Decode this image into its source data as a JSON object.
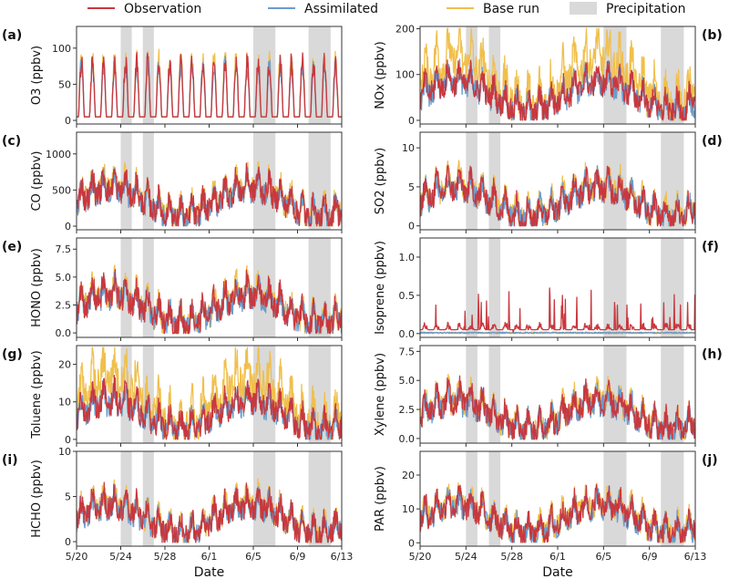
{
  "legend": [
    {
      "key": "obs",
      "label": "Observation",
      "color": "#c8383e"
    },
    {
      "key": "assim",
      "label": "Assimilated",
      "color": "#6b9ccc"
    },
    {
      "key": "base",
      "label": "Base run",
      "color": "#f0bf4c"
    },
    {
      "key": "precip",
      "label": "Precipitation",
      "color": "#d9d9d9"
    }
  ],
  "xlabel": "Date",
  "chart_data": [
    {
      "type": "line",
      "label": "(a)",
      "ylabel": "O3 (ppbv)",
      "ylabel_sub": "3",
      "ylim": [
        -5,
        130
      ],
      "yticks": [
        0,
        50,
        100
      ]
    },
    {
      "type": "line",
      "label": "(b)",
      "ylabel": "NOx (ppbv)",
      "ylim": [
        -8,
        205
      ],
      "yticks": [
        0,
        100,
        200
      ]
    },
    {
      "type": "line",
      "label": "(c)",
      "ylabel": "CO (ppbv)",
      "ylim": [
        -50,
        1300
      ],
      "yticks": [
        0,
        500,
        1000
      ]
    },
    {
      "type": "line",
      "label": "(d)",
      "ylabel": "SO2 (ppbv)",
      "ylabel_sub": "2",
      "ylim": [
        -0.5,
        12
      ],
      "yticks": [
        0,
        5,
        10
      ]
    },
    {
      "type": "line",
      "label": "(e)",
      "ylabel": "HONO (ppbv)",
      "ylim": [
        -0.4,
        8.5
      ],
      "yticks": [
        0.0,
        2.5,
        5.0,
        7.5
      ]
    },
    {
      "type": "line",
      "label": "(f)",
      "ylabel": "Isoprene (ppbv)",
      "ylim": [
        -0.05,
        1.25
      ],
      "yticks": [
        0.0,
        0.5,
        1.0
      ]
    },
    {
      "type": "line",
      "label": "(g)",
      "ylabel": "Toluene (ppbv)",
      "ylim": [
        -1,
        25
      ],
      "yticks": [
        0,
        10,
        20
      ]
    },
    {
      "type": "line",
      "label": "(h)",
      "ylabel": "Xylene (ppbv)",
      "ylim": [
        -0.4,
        8
      ],
      "yticks": [
        0.0,
        2.5,
        5.0,
        7.5
      ]
    },
    {
      "type": "line",
      "label": "(i)",
      "ylabel": "HCHO (ppbv)",
      "ylim": [
        -0.5,
        10
      ],
      "yticks": [
        0,
        5,
        10
      ]
    },
    {
      "type": "line",
      "label": "(j)",
      "ylabel": "PAR (ppbv)",
      "ylim": [
        -1,
        27
      ],
      "yticks": [
        0,
        10,
        20
      ]
    }
  ],
  "x_ticks": [
    "5/20",
    "5/24",
    "5/28",
    "6/1",
    "6/5",
    "6/9",
    "6/13"
  ],
  "x_range": [
    "5/20",
    "6/13"
  ],
  "precipitation_periods": [
    [
      "5/24",
      "5/25"
    ],
    [
      "5/26",
      "5/27"
    ],
    [
      "6/5",
      "6/7"
    ],
    [
      "6/10",
      "6/12"
    ]
  ]
}
